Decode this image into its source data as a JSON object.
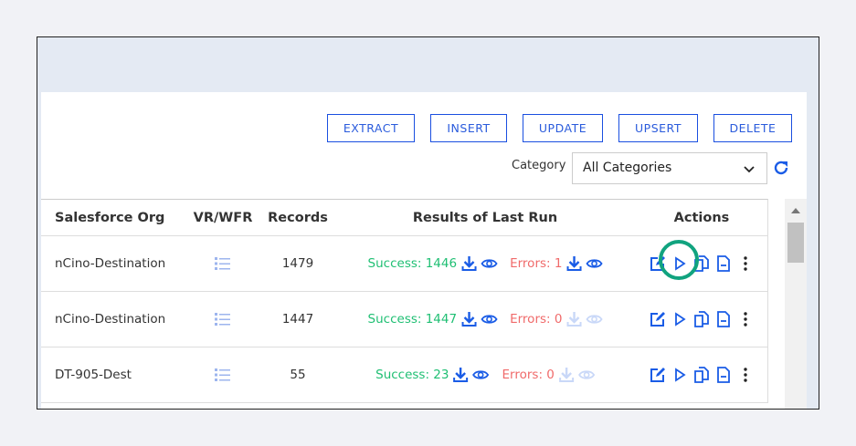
{
  "toolbar": {
    "buttons": [
      "EXTRACT",
      "INSERT",
      "UPDATE",
      "UPSERT",
      "DELETE"
    ]
  },
  "filter": {
    "label": "Category",
    "value": "All Categories"
  },
  "table": {
    "headers": [
      "Salesforce Org",
      "VR/WFR",
      "Records",
      "Results of Last Run",
      "Actions"
    ],
    "rows": [
      {
        "org": "nCino-Destination",
        "records": "1479",
        "success": "Success: 1446",
        "errors": "Errors: 1",
        "errors_enabled": true
      },
      {
        "org": "nCino-Destination",
        "records": "1447",
        "success": "Success: 1447",
        "errors": "Errors: 0",
        "errors_enabled": false
      },
      {
        "org": "DT-905-Dest",
        "records": "55",
        "success": "Success: 23",
        "errors": "Errors: 0",
        "errors_enabled": false
      }
    ]
  },
  "colors": {
    "accent": "#1a5ce6",
    "success": "#1fbf73",
    "error": "#f06a6a",
    "highlight": "#11a37f"
  }
}
